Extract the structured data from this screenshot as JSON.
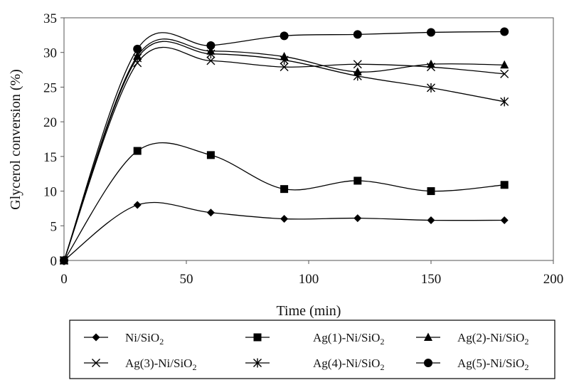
{
  "chart_data": {
    "type": "line",
    "title": "",
    "xlabel": "Time (min)",
    "ylabel": "Glycerol conversion (%)",
    "xlim": [
      0,
      200
    ],
    "ylim": [
      0,
      35
    ],
    "xticks": [
      0,
      50,
      100,
      150,
      200
    ],
    "yticks": [
      0,
      5,
      10,
      15,
      20,
      25,
      30,
      35
    ],
    "grid": false,
    "legend_position": "bottom",
    "x": [
      0,
      30,
      60,
      90,
      120,
      150,
      180
    ],
    "series": [
      {
        "name": "Ni/SiO2",
        "legend_main": "Ni/SiO",
        "legend_sub": "2",
        "marker": "diamond",
        "values": [
          0,
          8.0,
          6.9,
          6.0,
          6.1,
          5.8,
          5.8
        ]
      },
      {
        "name": "Ag(1)-Ni/SiO2",
        "legend_main": "Ag(1)-Ni/SiO",
        "legend_sub": "2",
        "marker": "square",
        "values": [
          0,
          15.8,
          15.2,
          10.3,
          11.5,
          10.0,
          10.9
        ]
      },
      {
        "name": "Ag(2)-Ni/SiO2",
        "legend_main": "Ag(2)-Ni/SiO",
        "legend_sub": "2",
        "marker": "triangle",
        "values": [
          0,
          29.5,
          30.2,
          29.4,
          27.2,
          28.3,
          28.2
        ]
      },
      {
        "name": "Ag(3)-Ni/SiO2",
        "legend_main": "Ag(3)-Ni/SiO",
        "legend_sub": "2",
        "marker": "x",
        "values": [
          0,
          28.5,
          28.8,
          27.9,
          28.3,
          27.9,
          26.9
        ]
      },
      {
        "name": "Ag(4)-Ni/SiO2",
        "legend_main": "Ag(4)-Ni/SiO",
        "legend_sub": "2",
        "marker": "asterisk",
        "values": [
          0,
          29.2,
          29.8,
          28.9,
          26.6,
          24.9,
          22.9
        ]
      },
      {
        "name": "Ag(5)-Ni/SiO2",
        "legend_main": "Ag(5)-Ni/SiO",
        "legend_sub": "2",
        "marker": "circle",
        "values": [
          0,
          30.5,
          31.0,
          32.4,
          32.6,
          32.9,
          33.0
        ]
      }
    ]
  }
}
